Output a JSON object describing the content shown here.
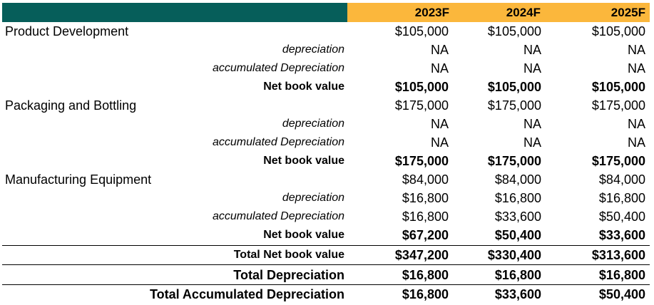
{
  "header": {
    "years": [
      "2023F",
      "2024F",
      "2025F"
    ]
  },
  "assets": [
    {
      "name": "Product Development",
      "cost": [
        "$105,000",
        "$105,000",
        "$105,000"
      ],
      "depreciation_label": "depreciation",
      "depreciation": [
        "NA",
        "NA",
        "NA"
      ],
      "accumulated_label": "accumulated Depreciation",
      "accumulated": [
        "NA",
        "NA",
        "NA"
      ],
      "nbv_label": "Net book value",
      "nbv": [
        "$105,000",
        "$105,000",
        "$105,000"
      ]
    },
    {
      "name": "Packaging and Bottling",
      "cost": [
        "$175,000",
        "$175,000",
        "$175,000"
      ],
      "depreciation_label": "depreciation",
      "depreciation": [
        "NA",
        "NA",
        "NA"
      ],
      "accumulated_label": "accumulated Depreciation",
      "accumulated": [
        "NA",
        "NA",
        "NA"
      ],
      "nbv_label": "Net book value",
      "nbv": [
        "$175,000",
        "$175,000",
        "$175,000"
      ]
    },
    {
      "name": "Manufacturing Equipment",
      "cost": [
        "$84,000",
        "$84,000",
        "$84,000"
      ],
      "depreciation_label": "depreciation",
      "depreciation": [
        "$16,800",
        "$16,800",
        "$16,800"
      ],
      "accumulated_label": "accumulated Depreciation",
      "accumulated": [
        "$16,800",
        "$33,600",
        "$50,400"
      ],
      "nbv_label": "Net book value",
      "nbv": [
        "$67,200",
        "$50,400",
        "$33,600"
      ]
    }
  ],
  "totals": {
    "total_nbv_label": "Total Net book value",
    "total_nbv": [
      "$347,200",
      "$330,400",
      "$313,600"
    ],
    "total_dep_label": "Total Depreciation",
    "total_dep": [
      "$16,800",
      "$16,800",
      "$16,800"
    ],
    "total_acc_label": "Total Accumulated Depreciation",
    "total_acc": [
      "$16,800",
      "$33,600",
      "$50,400"
    ]
  }
}
